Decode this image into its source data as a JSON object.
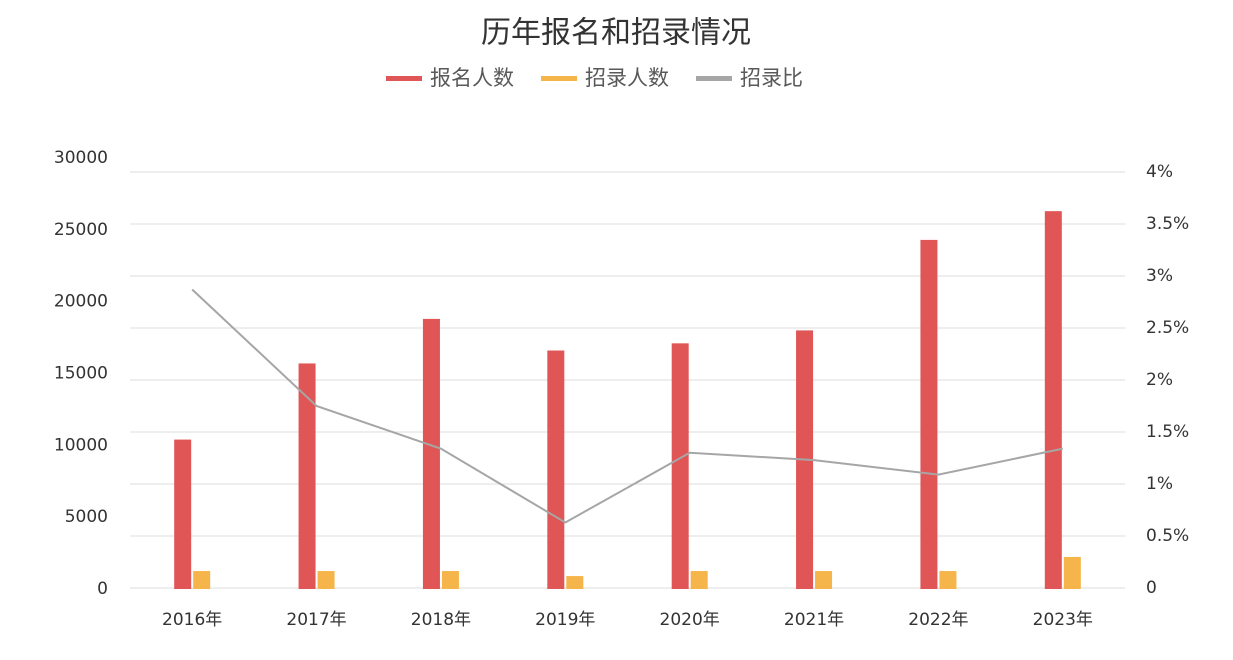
{
  "chart_data": {
    "type": "bar",
    "title": "历年报名和招录情况",
    "categories": [
      "2016年",
      "2017年",
      "2018年",
      "2019年",
      "2020年",
      "2021年",
      "2022年",
      "2023年"
    ],
    "series": [
      {
        "name": "报名人数",
        "color": "#e05555",
        "values": [
          10400,
          15700,
          18800,
          16600,
          17100,
          18000,
          24300,
          26300
        ]
      },
      {
        "name": "招录人数",
        "color": "#f5b54a",
        "values": [
          1250,
          1250,
          1250,
          900,
          1250,
          1250,
          1250,
          2230
        ]
      },
      {
        "name": "招录比",
        "color": "#a6a6a6",
        "type": "line",
        "axis": "y2",
        "values": [
          2.87,
          1.75,
          1.34,
          0.63,
          1.3,
          1.23,
          1.09,
          1.34
        ]
      }
    ],
    "ylim": [
      0,
      30000
    ],
    "yticks": [
      0,
      5000,
      10000,
      15000,
      20000,
      25000,
      30000
    ],
    "y2lim": [
      0,
      4
    ],
    "y2ticks": [
      {
        "value": 0,
        "label": "0"
      },
      {
        "value": 0.5,
        "label": "0.5%"
      },
      {
        "value": 1,
        "label": "1%"
      },
      {
        "value": 1.5,
        "label": "1.5%"
      },
      {
        "value": 2,
        "label": "2%"
      },
      {
        "value": 2.5,
        "label": "2.5%"
      },
      {
        "value": 3,
        "label": "3%"
      },
      {
        "value": 3.5,
        "label": "3.5%"
      },
      {
        "value": 4,
        "label": "4%"
      }
    ],
    "grid": true,
    "legend": "top"
  }
}
